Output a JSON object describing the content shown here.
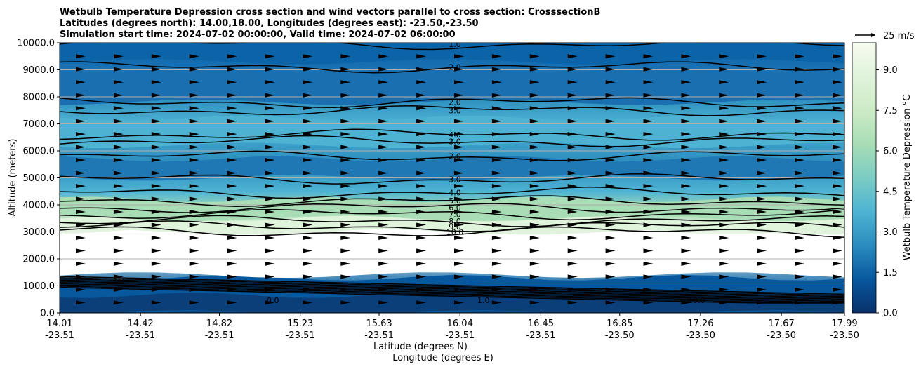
{
  "chart_data": {
    "type": "contour",
    "title_lines": [
      "Wetbulb Temperature Depression cross section and wind vectors parallel to cross section: CrosssectionB",
      "Latitudes (degrees north): 14.00,18.00, Longitudes (degrees east): -23.50,-23.50",
      "Simulation start time: 2024-07-02 00:00:00, Valid time: 2024-07-02 06:00:00"
    ],
    "ylabel": "Altitude (meters)",
    "xlabel_lat": "Latitude (degrees N)",
    "xlabel_lon": "Longitude (degrees E)",
    "ylim": [
      0,
      10000
    ],
    "yticks": [
      "0.0",
      "1000.0",
      "2000.0",
      "3000.0",
      "4000.0",
      "5000.0",
      "6000.0",
      "7000.0",
      "8000.0",
      "9000.0",
      "10000.0"
    ],
    "xlim": [
      14.01,
      17.99
    ],
    "xticks_lat": [
      "14.01",
      "14.42",
      "14.82",
      "15.23",
      "15.63",
      "16.04",
      "16.45",
      "16.85",
      "17.26",
      "17.67",
      "17.99"
    ],
    "xticks_lon": [
      "-23.51",
      "-23.51",
      "-23.51",
      "-23.51",
      "-23.51",
      "-23.51",
      "-23.51",
      "-23.50",
      "-23.50",
      "-23.50",
      "-23.50"
    ],
    "grid": "horizontal",
    "colorbar": {
      "label": "Wetbulb Temperature Depression °C",
      "range": [
        0,
        10
      ],
      "ticks": [
        "0.0",
        "1.5",
        "3.0",
        "4.5",
        "6.0",
        "7.5",
        "9.0"
      ],
      "colormap": [
        "#08306b",
        "#08589e",
        "#2b8cbe",
        "#4eb3d3",
        "#7bccc4",
        "#a8ddb5",
        "#ccebc5",
        "#e0f3db",
        "#f7fcf0"
      ]
    },
    "wind_reference": "25 m/s",
    "contour_levels": [
      {
        "level": 1.0,
        "y": 9950
      },
      {
        "level": 2.0,
        "y": 9100
      },
      {
        "level": 2.0,
        "y": 7800
      },
      {
        "level": 3.0,
        "y": 7500
      },
      {
        "level": 4.0,
        "y": 6600
      },
      {
        "level": 3.0,
        "y": 6350
      },
      {
        "level": 2.0,
        "y": 5800
      },
      {
        "level": 3.0,
        "y": 4950
      },
      {
        "level": 4.0,
        "y": 4450
      },
      {
        "level": 5.0,
        "y": 4150
      },
      {
        "level": 6.0,
        "y": 3900
      },
      {
        "level": 7.0,
        "y": 3650
      },
      {
        "level": 8.0,
        "y": 3400
      },
      {
        "level": 9.0,
        "y": 3200
      },
      {
        "level": 10.0,
        "y": 3000
      }
    ],
    "surface_labels": [
      "0.0",
      "1.0",
      "10.0"
    ]
  }
}
